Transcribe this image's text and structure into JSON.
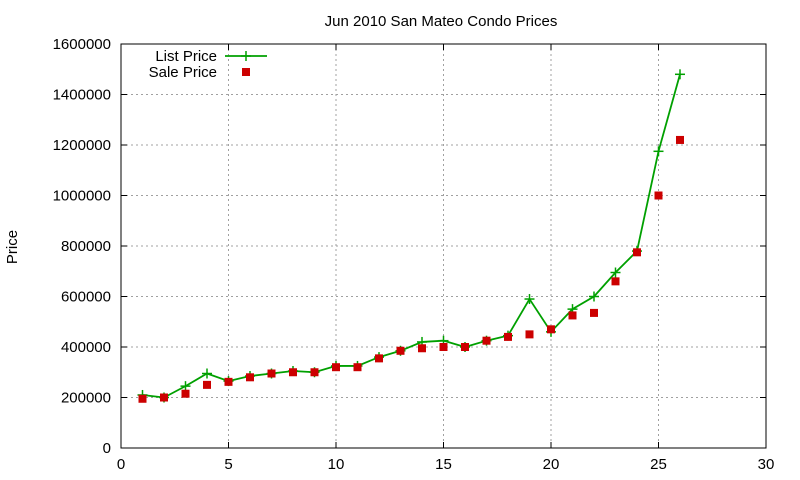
{
  "chart_data": {
    "type": "line",
    "title": "Jun 2010 San Mateo Condo Prices",
    "xlabel": "",
    "ylabel": "Price",
    "xlim": [
      0,
      30
    ],
    "ylim": [
      0,
      1600000
    ],
    "xticks": [
      0,
      5,
      10,
      15,
      20,
      25,
      30
    ],
    "yticks": [
      0,
      200000,
      400000,
      600000,
      800000,
      1000000,
      1200000,
      1400000,
      1600000
    ],
    "grid": true,
    "legend_position": "top-left",
    "series": [
      {
        "name": "List Price",
        "kind": "line-with-plus-markers",
        "color": "#00a000",
        "x": [
          1,
          2,
          3,
          4,
          5,
          6,
          7,
          8,
          9,
          10,
          11,
          12,
          13,
          14,
          15,
          16,
          17,
          18,
          19,
          20,
          21,
          22,
          23,
          24,
          25,
          26
        ],
        "y": [
          210000,
          200000,
          245000,
          295000,
          265000,
          285000,
          295000,
          305000,
          300000,
          325000,
          325000,
          360000,
          385000,
          420000,
          425000,
          400000,
          425000,
          445000,
          590000,
          460000,
          550000,
          600000,
          695000,
          780000,
          1175000,
          1480000
        ]
      },
      {
        "name": "Sale Price",
        "kind": "square-markers",
        "color": "#cc0000",
        "x": [
          1,
          2,
          3,
          4,
          5,
          6,
          7,
          8,
          9,
          10,
          11,
          12,
          13,
          14,
          15,
          16,
          17,
          18,
          19,
          20,
          21,
          22,
          23,
          24,
          25,
          26
        ],
        "y": [
          195000,
          200000,
          215000,
          250000,
          262000,
          280000,
          295000,
          300000,
          300000,
          320000,
          320000,
          355000,
          385000,
          395000,
          400000,
          400000,
          425000,
          440000,
          450000,
          470000,
          525000,
          535000,
          660000,
          775000,
          1000000,
          1220000
        ]
      }
    ]
  }
}
